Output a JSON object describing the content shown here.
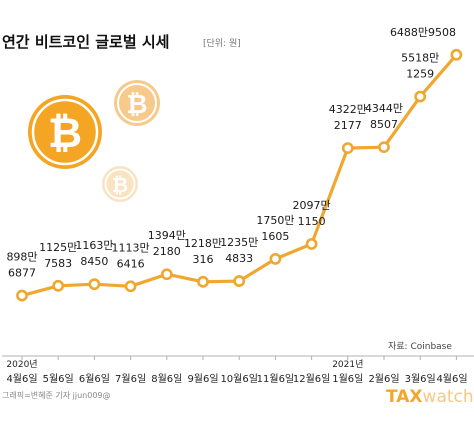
{
  "chart_data": {
    "type": "line",
    "title": "연간 비트코인 글로벌 시세",
    "unit_note": "[단위: 원]",
    "source": "자료: Coinbase",
    "credit": "그래픽=변혜준 기자 jjun009@",
    "brand": {
      "tax": "TAX",
      "watch": "watch"
    },
    "colors": {
      "line": "#f0a72f",
      "marker_fill": "#ffffff",
      "coin": "#f4a523"
    },
    "icons": [
      "bitcoin-coin-icon",
      "bitcoin-coin-icon",
      "bitcoin-coin-icon"
    ],
    "year_labels": [
      {
        "index": 0,
        "text": "2020년"
      },
      {
        "index": 9,
        "text": "2021년"
      }
    ],
    "categories": [
      "4월6일",
      "5월6일",
      "6월6일",
      "7월6일",
      "8월6일",
      "9월6일",
      "10월6일",
      "11월6일",
      "12월6일",
      "1월6일",
      "2월6일",
      "3월6일",
      "4월6일"
    ],
    "values": [
      8986877,
      11257583,
      11638450,
      11136416,
      13942180,
      12180316,
      12354833,
      17501605,
      20971150,
      43222177,
      43448507,
      55181259,
      64889508
    ],
    "labels": [
      [
        "898만",
        "6877"
      ],
      [
        "1125만",
        "7583"
      ],
      [
        "1163만",
        "8450"
      ],
      [
        "1113만",
        "6416"
      ],
      [
        "1394만",
        "2180"
      ],
      [
        "1218만",
        "316"
      ],
      [
        "1235만",
        "4833"
      ],
      [
        "1750만",
        "1605"
      ],
      [
        "2097만",
        "1150"
      ],
      [
        "4322만",
        "2177"
      ],
      [
        "4344만",
        "8507"
      ],
      [
        "5518만",
        "1259"
      ],
      [
        "6488만9508"
      ]
    ],
    "ylim": [
      0,
      70000000
    ],
    "grid": false,
    "legend": "none"
  }
}
